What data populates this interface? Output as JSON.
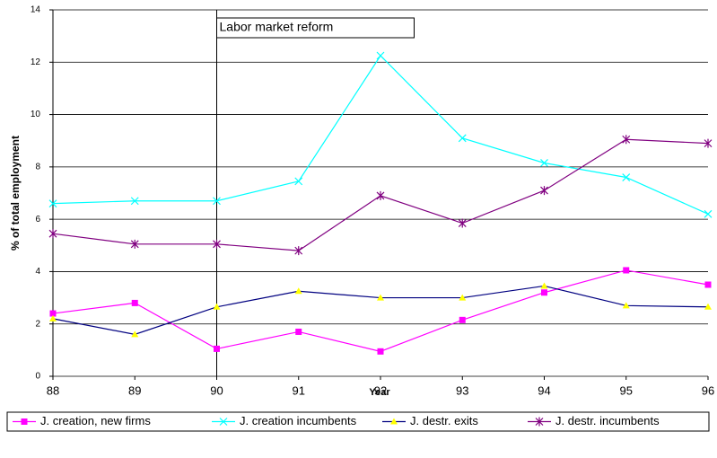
{
  "chart_data": {
    "type": "line",
    "x_label": "Year",
    "y_label": "% of total employment",
    "x": [
      88,
      89,
      90,
      91,
      92,
      93,
      94,
      95,
      96
    ],
    "xlim": [
      88,
      96
    ],
    "xticks": [
      88,
      89,
      90,
      91,
      92,
      93,
      94,
      95,
      96
    ],
    "ylim": [
      0,
      14
    ],
    "yticks": [
      0,
      2,
      4,
      6,
      8,
      10,
      12,
      14
    ],
    "grid": true,
    "legend": "bottom",
    "annotation": {
      "text": "Labor market reform",
      "x": 90
    },
    "series": [
      {
        "name": "J. creation, new firms",
        "color": "#ff00ff",
        "marker": "square",
        "marker_color": "#ff00ff",
        "values": [
          2.4,
          2.8,
          1.05,
          1.7,
          0.95,
          2.15,
          3.2,
          4.05,
          3.5
        ]
      },
      {
        "name": "J. creation incumbents",
        "color": "#00ffff",
        "marker": "x",
        "marker_color": "#00ffff",
        "values": [
          6.6,
          6.7,
          6.7,
          7.45,
          12.25,
          9.1,
          8.15,
          7.6,
          6.2
        ]
      },
      {
        "name": "J. destr. exits",
        "color": "#000080",
        "marker": "triangle",
        "marker_color": "#ffff00",
        "values": [
          2.2,
          1.6,
          2.65,
          3.25,
          3.0,
          3.0,
          3.45,
          2.7,
          2.65
        ]
      },
      {
        "name": "J. destr. incumbents",
        "color": "#800080",
        "marker": "star",
        "marker_color": "#800080",
        "values": [
          5.45,
          5.05,
          5.05,
          4.8,
          6.9,
          5.85,
          7.1,
          9.05,
          8.9
        ]
      }
    ]
  }
}
